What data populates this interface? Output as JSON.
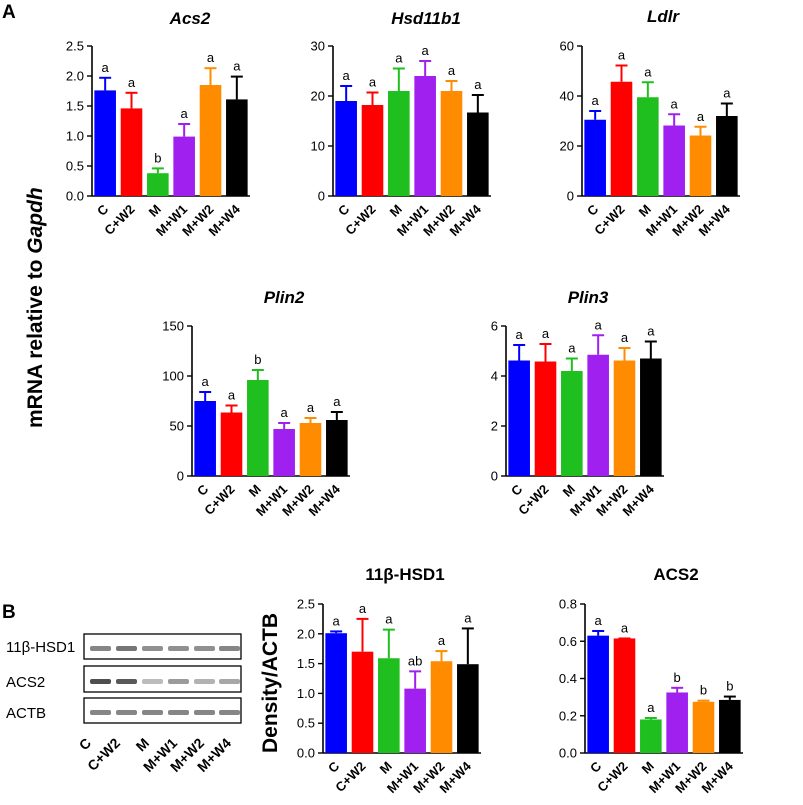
{
  "panel_a_label": "A",
  "panel_b_label": "B",
  "shared_ylabel_a": {
    "prefix": "mRNA relative to ",
    "gene": "Gapdh"
  },
  "ylabel_b": "Density/ACTB",
  "colors": [
    "#0000ff",
    "#ff0000",
    "#1fbf1f",
    "#a020f0",
    "#ff8c00",
    "#000000"
  ],
  "blot": {
    "bands": [
      "11β-HSD1",
      "ACS2",
      "ACTB"
    ],
    "lanes": [
      "C",
      "C+W2",
      "M",
      "M+W1",
      "M+W2",
      "M+W4"
    ]
  },
  "chart_data": [
    {
      "id": "acs2_mrna",
      "type": "bar",
      "title": "Acs2",
      "italic": true,
      "categories": [
        "C",
        "C+W2",
        "M",
        "M+W1",
        "M+W2",
        "M+W4"
      ],
      "values": [
        1.76,
        1.46,
        0.38,
        0.99,
        1.85,
        1.61
      ],
      "errors": [
        0.21,
        0.26,
        0.08,
        0.21,
        0.28,
        0.38
      ],
      "letters": [
        "a",
        "a",
        "b",
        "a",
        "a",
        "a"
      ],
      "ylim": [
        0,
        2.5
      ],
      "yticks": [
        "0.0",
        "0.5",
        "1.0",
        "1.5",
        "2.0",
        "2.5"
      ]
    },
    {
      "id": "hsd11b1_mrna",
      "type": "bar",
      "title": "Hsd11b1",
      "italic": true,
      "categories": [
        "C",
        "C+W2",
        "M",
        "M+W1",
        "M+W2",
        "M+W4"
      ],
      "values": [
        19,
        18.2,
        21,
        24,
        21,
        16.7
      ],
      "errors": [
        3,
        2.5,
        4.5,
        3,
        2,
        3.5
      ],
      "letters": [
        "a",
        "a",
        "a",
        "a",
        "a",
        "a"
      ],
      "ylim": [
        0,
        30
      ],
      "yticks": [
        "0",
        "10",
        "20",
        "30"
      ]
    },
    {
      "id": "ldlr_mrna",
      "type": "bar",
      "title": "Ldlr",
      "italic": true,
      "categories": [
        "C",
        "C+W2",
        "M",
        "M+W1",
        "M+W2",
        "M+W4"
      ],
      "values": [
        30.5,
        45.7,
        39.5,
        28.2,
        24.2,
        32
      ],
      "errors": [
        3.5,
        6.5,
        6,
        4.5,
        3.5,
        5
      ],
      "letters": [
        "a",
        "a",
        "a",
        "a",
        "a",
        "a"
      ],
      "ylim": [
        0,
        60
      ],
      "yticks": [
        "0",
        "20",
        "40",
        "60"
      ]
    },
    {
      "id": "plin2_mrna",
      "type": "bar",
      "title": "Plin2",
      "italic": true,
      "categories": [
        "C",
        "C+W2",
        "M",
        "M+W1",
        "M+W2",
        "M+W4"
      ],
      "values": [
        75,
        63.5,
        96,
        47,
        53,
        56
      ],
      "errors": [
        9,
        7,
        10,
        6,
        5,
        8
      ],
      "letters": [
        "a",
        "a",
        "b",
        "a",
        "a",
        "a"
      ],
      "ylim": [
        0,
        150
      ],
      "yticks": [
        "0",
        "50",
        "100",
        "150"
      ]
    },
    {
      "id": "plin3_mrna",
      "type": "bar",
      "title": "Plin3",
      "italic": true,
      "categories": [
        "C",
        "C+W2",
        "M",
        "M+W1",
        "M+W2",
        "M+W4"
      ],
      "values": [
        4.62,
        4.58,
        4.2,
        4.85,
        4.62,
        4.7
      ],
      "errors": [
        0.62,
        0.7,
        0.5,
        0.78,
        0.5,
        0.68
      ],
      "letters": [
        "a",
        "a",
        "a",
        "a",
        "a",
        "a"
      ],
      "ylim": [
        0,
        6
      ],
      "yticks": [
        "0",
        "2",
        "4",
        "6"
      ]
    },
    {
      "id": "hsd1_protein",
      "type": "bar",
      "title": "11β-HSD1",
      "italic": false,
      "categories": [
        "C",
        "C+W2",
        "M",
        "M+W1",
        "M+W2",
        "M+W4"
      ],
      "values": [
        2.01,
        1.7,
        1.59,
        1.08,
        1.54,
        1.49
      ],
      "errors": [
        0.03,
        0.55,
        0.48,
        0.29,
        0.17,
        0.6
      ],
      "letters": [
        "a",
        "a",
        "a",
        "ab",
        "a",
        "a"
      ],
      "ylim": [
        0,
        2.5
      ],
      "yticks": [
        "0.0",
        "0.5",
        "1.0",
        "1.5",
        "2.0",
        "2.5"
      ]
    },
    {
      "id": "acs2_protein",
      "type": "bar",
      "title": "ACS2",
      "italic": false,
      "categories": [
        "C",
        "C+W2",
        "M",
        "M+W1",
        "M+W2",
        "M+W4"
      ],
      "values": [
        0.63,
        0.615,
        0.18,
        0.325,
        0.275,
        0.285
      ],
      "errors": [
        0.025,
        0.0,
        0.008,
        0.025,
        0.006,
        0.018
      ],
      "letters": [
        "a",
        "a",
        "a",
        "b",
        "b",
        "b"
      ],
      "ylim": [
        0,
        0.8
      ],
      "yticks": [
        "0.0",
        "0.2",
        "0.4",
        "0.6",
        "0.8"
      ]
    }
  ]
}
